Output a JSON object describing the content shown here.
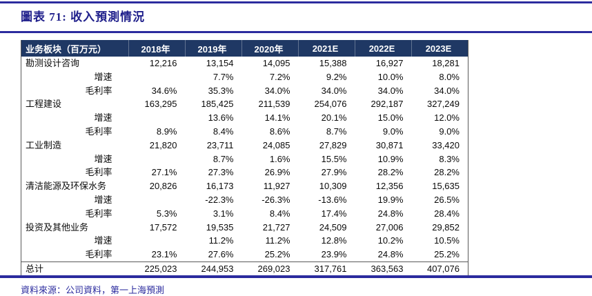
{
  "title": "圖表 71: 收入預測情況",
  "source_note": "資料來源：公司資料，第一上海預測",
  "colors": {
    "rule": "#2B2B9E",
    "title_text": "#1F1F8B",
    "header_bg": "#1F3864",
    "header_text": "#FFFFFF",
    "body_text": "#0A0A0A",
    "table_border": "#595959"
  },
  "chart_data": {
    "type": "table",
    "columns": [
      "业务板块（百万元）",
      "2018年",
      "2019年",
      "2020年",
      "2021E",
      "2022E",
      "2023E"
    ],
    "rows": [
      {
        "label": "勘测设计咨询",
        "indent": false,
        "values": [
          "12,216",
          "13,154",
          "14,095",
          "15,388",
          "16,927",
          "18,281"
        ]
      },
      {
        "label": "增速",
        "indent": true,
        "values": [
          "",
          "7.7%",
          "7.2%",
          "9.2%",
          "10.0%",
          "8.0%"
        ]
      },
      {
        "label": "毛利率",
        "indent": true,
        "values": [
          "34.6%",
          "35.3%",
          "34.0%",
          "34.0%",
          "34.0%",
          "34.0%"
        ]
      },
      {
        "label": "工程建设",
        "indent": false,
        "values": [
          "163,295",
          "185,425",
          "211,539",
          "254,076",
          "292,187",
          "327,249"
        ]
      },
      {
        "label": "增速",
        "indent": true,
        "values": [
          "",
          "13.6%",
          "14.1%",
          "20.1%",
          "15.0%",
          "12.0%"
        ]
      },
      {
        "label": "毛利率",
        "indent": true,
        "values": [
          "8.9%",
          "8.4%",
          "8.6%",
          "8.7%",
          "9.0%",
          "9.0%"
        ]
      },
      {
        "label": "工业制造",
        "indent": false,
        "values": [
          "21,820",
          "23,711",
          "24,085",
          "27,829",
          "30,871",
          "33,420"
        ]
      },
      {
        "label": "增速",
        "indent": true,
        "values": [
          "",
          "8.7%",
          "1.6%",
          "15.5%",
          "10.9%",
          "8.3%"
        ]
      },
      {
        "label": "毛利率",
        "indent": true,
        "values": [
          "27.1%",
          "27.3%",
          "26.9%",
          "27.9%",
          "28.2%",
          "28.2%"
        ]
      },
      {
        "label": "清洁能源及环保水务",
        "indent": false,
        "values": [
          "20,826",
          "16,173",
          "11,927",
          "10,309",
          "12,356",
          "15,635"
        ]
      },
      {
        "label": "增速",
        "indent": true,
        "values": [
          "",
          "-22.3%",
          "-26.3%",
          "-13.6%",
          "19.9%",
          "26.5%"
        ]
      },
      {
        "label": "毛利率",
        "indent": true,
        "values": [
          "5.3%",
          "3.1%",
          "8.4%",
          "17.4%",
          "24.8%",
          "28.4%"
        ]
      },
      {
        "label": "投资及其他业务",
        "indent": false,
        "values": [
          "17,572",
          "19,535",
          "21,727",
          "24,509",
          "27,006",
          "29,852"
        ]
      },
      {
        "label": "增速",
        "indent": true,
        "values": [
          "",
          "11.2%",
          "11.2%",
          "12.8%",
          "10.2%",
          "10.5%"
        ]
      },
      {
        "label": "毛利率",
        "indent": true,
        "values": [
          "23.1%",
          "27.6%",
          "25.2%",
          "23.9%",
          "24.8%",
          "25.2%"
        ]
      }
    ],
    "total_row": {
      "label": "总计",
      "values": [
        "225,023",
        "244,953",
        "269,023",
        "317,761",
        "363,563",
        "407,076"
      ]
    }
  }
}
